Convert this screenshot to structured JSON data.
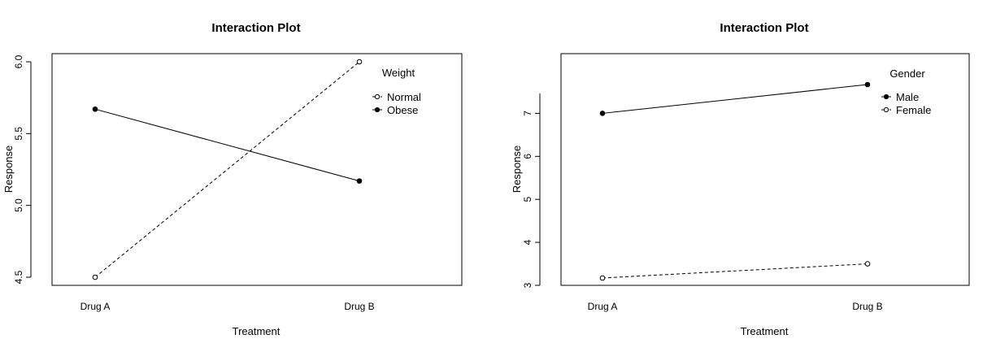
{
  "chart_data": [
    {
      "type": "line",
      "title": "Interaction Plot",
      "xlabel": "Treatment",
      "ylabel": "Response",
      "categories": [
        "Drug A",
        "Drug B"
      ],
      "ylim": [
        4.5,
        6.0
      ],
      "yticks": [
        4.5,
        5.0,
        5.5,
        6.0
      ],
      "ytick_labels": [
        "4.5",
        "5.0",
        "5.5",
        "6.0"
      ],
      "legend": {
        "title": "Weight",
        "position": "top-right"
      },
      "series": [
        {
          "name": "Normal",
          "values": [
            4.5,
            6.0
          ],
          "linestyle": "dashed",
          "marker": "open-circle"
        },
        {
          "name": "Obese",
          "values": [
            5.67,
            5.17
          ],
          "linestyle": "solid",
          "marker": "filled-circle"
        }
      ],
      "grid": false
    },
    {
      "type": "line",
      "title": "Interaction Plot",
      "xlabel": "Treatment",
      "ylabel": "Response",
      "categories": [
        "Drug A",
        "Drug B"
      ],
      "ylim": [
        3,
        7.67
      ],
      "yticks": [
        3,
        4,
        5,
        6,
        7
      ],
      "ytick_labels": [
        "3",
        "4",
        "5",
        "6",
        "7"
      ],
      "legend": {
        "title": "Gender",
        "position": "top-right"
      },
      "series": [
        {
          "name": "Male",
          "values": [
            7.0,
            7.67
          ],
          "linestyle": "solid",
          "marker": "filled-circle"
        },
        {
          "name": "Female",
          "values": [
            3.17,
            3.5
          ],
          "linestyle": "dashed",
          "marker": "open-circle"
        }
      ],
      "grid": false
    }
  ]
}
